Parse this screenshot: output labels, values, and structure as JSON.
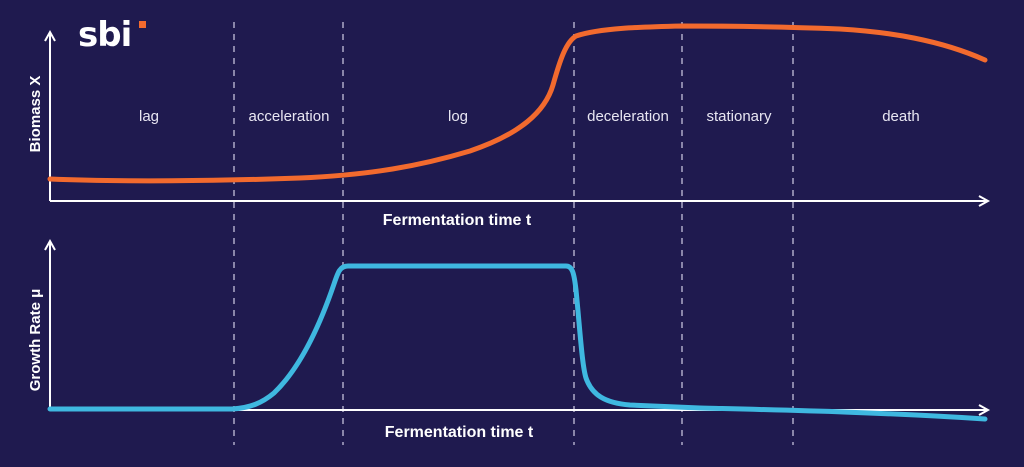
{
  "logo": {
    "text": "sbi",
    "accent_color": "#f26a2e"
  },
  "colors": {
    "background": "#1f1a4f",
    "biomass": "#f26a2e",
    "growth": "#3fb8e0",
    "axis": "#ffffff",
    "divider": "#8a86aa"
  },
  "phases": [
    "lag",
    "acceleration",
    "log",
    "deceleration",
    "stationary",
    "death"
  ],
  "top_chart": {
    "ylabel": "Biomass X",
    "xlabel": "Fermentation time t"
  },
  "bottom_chart": {
    "ylabel": "Growth Rate μ",
    "xlabel": "Fermentation time t"
  }
}
